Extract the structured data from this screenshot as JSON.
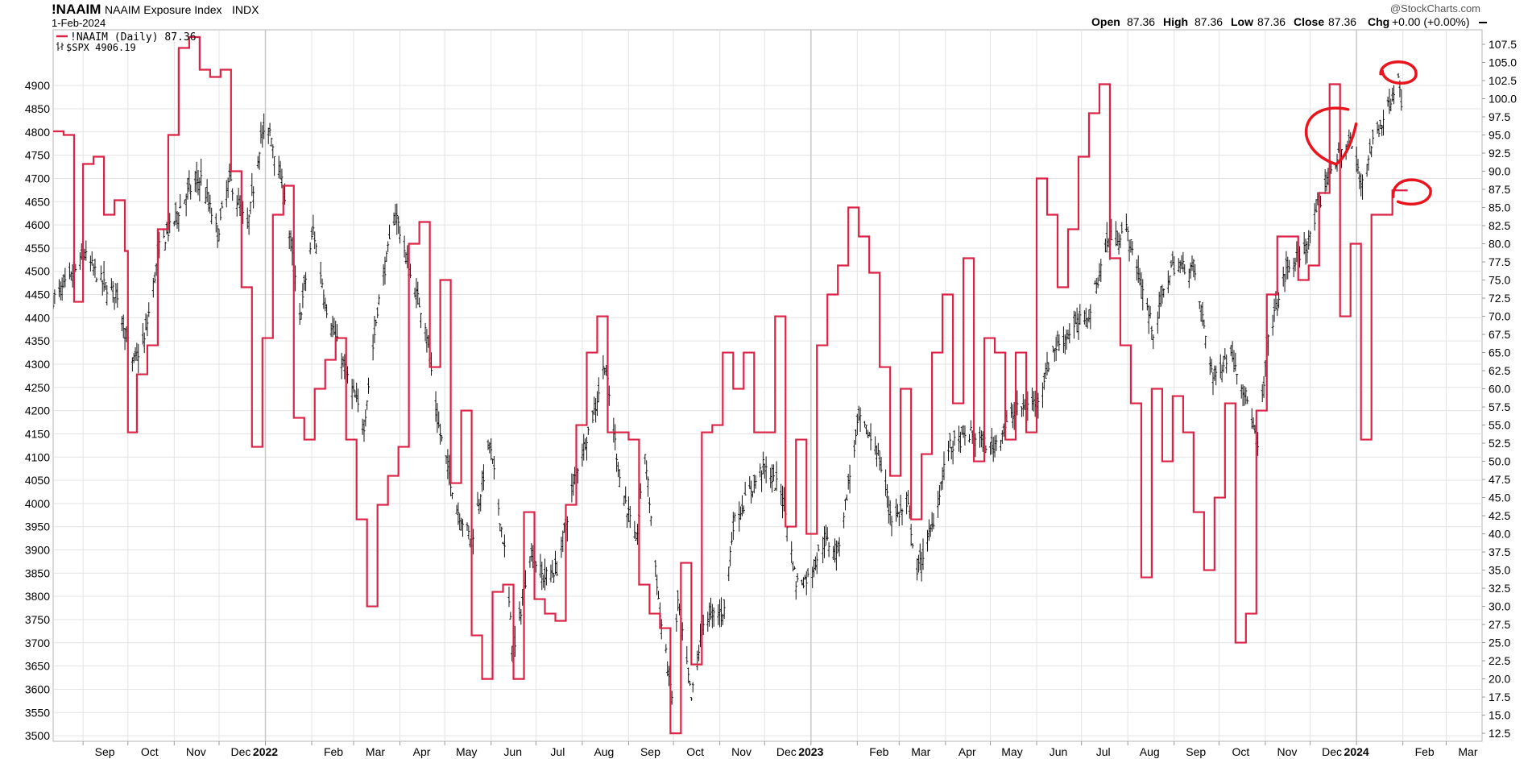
{
  "header": {
    "symbol": "!NAAIM",
    "name": "NAAIM Exposure Index",
    "exchange": "INDX",
    "date": "1-Feb-2024",
    "watermark": "@StockCharts.com",
    "ohlc": {
      "open_label": "Open",
      "open": "87.36",
      "high_label": "High",
      "high": "87.36",
      "low_label": "Low",
      "low": "87.36",
      "close_label": "Close",
      "close": "87.36",
      "chg_label": "Chg",
      "chg": "+0.00 (+0.00%)"
    }
  },
  "legend": {
    "naaim": "!NAAIM (Daily) 87.36",
    "spx": "$SPX 4906.19"
  },
  "colors": {
    "naaim": "#dc2346",
    "spx": "#111111",
    "grid": "#e3e3e3",
    "annotation": "#e8141e"
  },
  "chart_data": {
    "type": "line",
    "x_axis": {
      "range": [
        "2021-08-12",
        "2024-03-25"
      ],
      "tick_labels": [
        {
          "label": "Sep",
          "date": "2021-09-01"
        },
        {
          "label": "Oct",
          "date": "2021-10-01"
        },
        {
          "label": "Nov",
          "date": "2021-11-01"
        },
        {
          "label": "Dec",
          "date": "2021-12-01"
        },
        {
          "label": "2022",
          "date": "2022-01-01",
          "bold": true
        },
        {
          "label": "Feb",
          "date": "2022-02-01"
        },
        {
          "label": "Mar",
          "date": "2022-03-01"
        },
        {
          "label": "Apr",
          "date": "2022-04-01"
        },
        {
          "label": "May",
          "date": "2022-05-01"
        },
        {
          "label": "Jun",
          "date": "2022-06-01"
        },
        {
          "label": "Jul",
          "date": "2022-07-01"
        },
        {
          "label": "Aug",
          "date": "2022-08-01"
        },
        {
          "label": "Sep",
          "date": "2022-09-01"
        },
        {
          "label": "Oct",
          "date": "2022-10-01"
        },
        {
          "label": "Nov",
          "date": "2022-11-01"
        },
        {
          "label": "Dec",
          "date": "2022-12-01"
        },
        {
          "label": "2023",
          "date": "2023-01-01",
          "bold": true
        },
        {
          "label": "Feb",
          "date": "2023-02-01"
        },
        {
          "label": "Mar",
          "date": "2023-03-01"
        },
        {
          "label": "Apr",
          "date": "2023-04-01"
        },
        {
          "label": "May",
          "date": "2023-05-01"
        },
        {
          "label": "Jun",
          "date": "2023-06-01"
        },
        {
          "label": "Jul",
          "date": "2023-07-01"
        },
        {
          "label": "Aug",
          "date": "2023-08-01"
        },
        {
          "label": "Sep",
          "date": "2023-09-01"
        },
        {
          "label": "Oct",
          "date": "2023-10-01"
        },
        {
          "label": "Nov",
          "date": "2023-11-01"
        },
        {
          "label": "Dec",
          "date": "2023-12-01"
        },
        {
          "label": "2024",
          "date": "2024-01-01",
          "bold": true
        },
        {
          "label": "Feb",
          "date": "2024-02-01"
        },
        {
          "label": "Mar",
          "date": "2024-03-01"
        }
      ]
    },
    "left_axis": {
      "ylim": [
        3488,
        5020
      ],
      "ticks": [
        3500,
        3550,
        3600,
        3650,
        3700,
        3750,
        3800,
        3850,
        3900,
        3950,
        4000,
        4050,
        4100,
        4150,
        4200,
        4250,
        4300,
        4350,
        4400,
        4450,
        4500,
        4550,
        4600,
        4650,
        4700,
        4750,
        4800,
        4850,
        4900
      ]
    },
    "right_axis": {
      "ylim": [
        11.4,
        109.5
      ],
      "ticks": [
        "12.5",
        "15.0",
        "17.5",
        "20.0",
        "22.5",
        "25.0",
        "27.5",
        "30.0",
        "32.5",
        "35.0",
        "37.5",
        "40.0",
        "42.5",
        "45.0",
        "47.5",
        "50.0",
        "52.5",
        "55.0",
        "57.5",
        "60.0",
        "62.5",
        "65.0",
        "67.5",
        "70.0",
        "72.5",
        "75.0",
        "77.5",
        "80.0",
        "82.5",
        "85.0",
        "87.5",
        "90.0",
        "92.5",
        "95.0",
        "97.5",
        "100.0",
        "102.5",
        "105.0",
        "107.5"
      ]
    },
    "series": [
      {
        "name": "!NAAIM (Daily)",
        "axis": "right",
        "style": "step",
        "points": [
          [
            "2021-08-12",
            95.5
          ],
          [
            "2021-08-19",
            95.0
          ],
          [
            "2021-08-26",
            72
          ],
          [
            "2021-09-01",
            91
          ],
          [
            "2021-09-08",
            92
          ],
          [
            "2021-09-15",
            84
          ],
          [
            "2021-09-22",
            86
          ],
          [
            "2021-09-29",
            79
          ],
          [
            "2021-10-01",
            54
          ],
          [
            "2021-10-07",
            62
          ],
          [
            "2021-10-14",
            66
          ],
          [
            "2021-10-21",
            82
          ],
          [
            "2021-10-28",
            95
          ],
          [
            "2021-11-04",
            107
          ],
          [
            "2021-11-11",
            108.5
          ],
          [
            "2021-11-18",
            104
          ],
          [
            "2021-11-25",
            103
          ],
          [
            "2021-12-02",
            104
          ],
          [
            "2021-12-09",
            90
          ],
          [
            "2021-12-16",
            74
          ],
          [
            "2021-12-23",
            52
          ],
          [
            "2021-12-30",
            67
          ],
          [
            "2022-01-06",
            84
          ],
          [
            "2022-01-13",
            88
          ],
          [
            "2022-01-20",
            56
          ],
          [
            "2022-01-27",
            53
          ],
          [
            "2022-02-03",
            60
          ],
          [
            "2022-02-10",
            64
          ],
          [
            "2022-02-17",
            67
          ],
          [
            "2022-02-24",
            53
          ],
          [
            "2022-03-03",
            42
          ],
          [
            "2022-03-10",
            30
          ],
          [
            "2022-03-17",
            44
          ],
          [
            "2022-03-24",
            48
          ],
          [
            "2022-03-31",
            52
          ],
          [
            "2022-04-07",
            80
          ],
          [
            "2022-04-14",
            83
          ],
          [
            "2022-04-21",
            63
          ],
          [
            "2022-04-28",
            75
          ],
          [
            "2022-05-05",
            47
          ],
          [
            "2022-05-12",
            57
          ],
          [
            "2022-05-19",
            26
          ],
          [
            "2022-05-26",
            20
          ],
          [
            "2022-06-02",
            32
          ],
          [
            "2022-06-09",
            33
          ],
          [
            "2022-06-16",
            20
          ],
          [
            "2022-06-23",
            43
          ],
          [
            "2022-06-30",
            31
          ],
          [
            "2022-07-07",
            29
          ],
          [
            "2022-07-14",
            28
          ],
          [
            "2022-07-21",
            44
          ],
          [
            "2022-07-28",
            55
          ],
          [
            "2022-08-04",
            65
          ],
          [
            "2022-08-11",
            70
          ],
          [
            "2022-08-18",
            54
          ],
          [
            "2022-08-25",
            54
          ],
          [
            "2022-09-01",
            53
          ],
          [
            "2022-09-08",
            33
          ],
          [
            "2022-09-15",
            29
          ],
          [
            "2022-09-22",
            27
          ],
          [
            "2022-09-29",
            12.5
          ],
          [
            "2022-10-06",
            36
          ],
          [
            "2022-10-13",
            22
          ],
          [
            "2022-10-20",
            54
          ],
          [
            "2022-10-27",
            55
          ],
          [
            "2022-11-03",
            65
          ],
          [
            "2022-11-10",
            60
          ],
          [
            "2022-11-17",
            65
          ],
          [
            "2022-11-24",
            54
          ],
          [
            "2022-12-01",
            54
          ],
          [
            "2022-12-08",
            70
          ],
          [
            "2022-12-15",
            41
          ],
          [
            "2022-12-22",
            53
          ],
          [
            "2022-12-29",
            40
          ],
          [
            "2023-01-05",
            66
          ],
          [
            "2023-01-12",
            73
          ],
          [
            "2023-01-19",
            77
          ],
          [
            "2023-01-26",
            85
          ],
          [
            "2023-02-02",
            81
          ],
          [
            "2023-02-09",
            76
          ],
          [
            "2023-02-16",
            63
          ],
          [
            "2023-02-23",
            48
          ],
          [
            "2023-03-02",
            60
          ],
          [
            "2023-03-09",
            42
          ],
          [
            "2023-03-16",
            51
          ],
          [
            "2023-03-23",
            65
          ],
          [
            "2023-03-30",
            73
          ],
          [
            "2023-04-06",
            58
          ],
          [
            "2023-04-13",
            78
          ],
          [
            "2023-04-20",
            50
          ],
          [
            "2023-04-27",
            67
          ],
          [
            "2023-05-04",
            65
          ],
          [
            "2023-05-11",
            53
          ],
          [
            "2023-05-18",
            65
          ],
          [
            "2023-05-25",
            54
          ],
          [
            "2023-06-01",
            89
          ],
          [
            "2023-06-08",
            84
          ],
          [
            "2023-06-15",
            74
          ],
          [
            "2023-06-22",
            82
          ],
          [
            "2023-06-29",
            92
          ],
          [
            "2023-07-06",
            98
          ],
          [
            "2023-07-13",
            102
          ],
          [
            "2023-07-20",
            78
          ],
          [
            "2023-07-27",
            66
          ],
          [
            "2023-08-03",
            58
          ],
          [
            "2023-08-10",
            34
          ],
          [
            "2023-08-17",
            60
          ],
          [
            "2023-08-24",
            50
          ],
          [
            "2023-08-31",
            59
          ],
          [
            "2023-09-07",
            54
          ],
          [
            "2023-09-14",
            43
          ],
          [
            "2023-09-21",
            35
          ],
          [
            "2023-09-28",
            45
          ],
          [
            "2023-10-05",
            58
          ],
          [
            "2023-10-12",
            25
          ],
          [
            "2023-10-19",
            29
          ],
          [
            "2023-10-26",
            57
          ],
          [
            "2023-11-02",
            73
          ],
          [
            "2023-11-09",
            81
          ],
          [
            "2023-11-16",
            81
          ],
          [
            "2023-11-23",
            75
          ],
          [
            "2023-11-30",
            77
          ],
          [
            "2023-12-07",
            87
          ],
          [
            "2023-12-14",
            102
          ],
          [
            "2023-12-21",
            70
          ],
          [
            "2023-12-28",
            80
          ],
          [
            "2024-01-04",
            53
          ],
          [
            "2024-01-11",
            84
          ],
          [
            "2024-01-18",
            84
          ],
          [
            "2024-01-25",
            87.36
          ],
          [
            "2024-02-01",
            87.36
          ]
        ]
      },
      {
        "name": "$SPX",
        "axis": "left",
        "style": "ohlc",
        "points": [
          [
            "2021-08-12",
            4440
          ],
          [
            "2021-08-23",
            4480
          ],
          [
            "2021-09-02",
            4535
          ],
          [
            "2021-09-15",
            4470
          ],
          [
            "2021-09-24",
            4450
          ],
          [
            "2021-10-04",
            4300
          ],
          [
            "2021-10-12",
            4350
          ],
          [
            "2021-10-22",
            4550
          ],
          [
            "2021-11-01",
            4610
          ],
          [
            "2021-11-10",
            4670
          ],
          [
            "2021-11-19",
            4700
          ],
          [
            "2021-11-30",
            4580
          ],
          [
            "2021-12-08",
            4700
          ],
          [
            "2021-12-20",
            4590
          ],
          [
            "2021-12-29",
            4790
          ],
          [
            "2022-01-04",
            4800
          ],
          [
            "2022-01-14",
            4660
          ],
          [
            "2022-01-24",
            4400
          ],
          [
            "2022-02-02",
            4590
          ],
          [
            "2022-02-11",
            4420
          ],
          [
            "2022-02-24",
            4280
          ],
          [
            "2022-03-08",
            4170
          ],
          [
            "2022-03-17",
            4420
          ],
          [
            "2022-03-29",
            4630
          ],
          [
            "2022-04-08",
            4490
          ],
          [
            "2022-04-18",
            4390
          ],
          [
            "2022-04-26",
            4180
          ],
          [
            "2022-05-09",
            3990
          ],
          [
            "2022-05-19",
            3920
          ],
          [
            "2022-05-31",
            4130
          ],
          [
            "2022-06-10",
            3900
          ],
          [
            "2022-06-16",
            3666
          ],
          [
            "2022-06-27",
            3900
          ],
          [
            "2022-07-06",
            3840
          ],
          [
            "2022-07-15",
            3860
          ],
          [
            "2022-07-28",
            4070
          ],
          [
            "2022-08-10",
            4210
          ],
          [
            "2022-08-16",
            4305
          ],
          [
            "2022-08-26",
            4057
          ],
          [
            "2022-09-06",
            3910
          ],
          [
            "2022-09-12",
            4110
          ],
          [
            "2022-09-22",
            3760
          ],
          [
            "2022-09-30",
            3585
          ],
          [
            "2022-10-04",
            3790
          ],
          [
            "2022-10-13",
            3577
          ],
          [
            "2022-10-21",
            3750
          ],
          [
            "2022-11-04",
            3770
          ],
          [
            "2022-11-10",
            3956
          ],
          [
            "2022-11-30",
            4080
          ],
          [
            "2022-12-13",
            4020
          ],
          [
            "2022-12-22",
            3830
          ],
          [
            "2022-12-30",
            3840
          ],
          [
            "2023-01-10",
            3920
          ],
          [
            "2023-01-19",
            3900
          ],
          [
            "2023-02-02",
            4180
          ],
          [
            "2023-02-14",
            4120
          ],
          [
            "2023-02-24",
            3970
          ],
          [
            "2023-03-07",
            3990
          ],
          [
            "2023-03-13",
            3850
          ],
          [
            "2023-03-23",
            3950
          ],
          [
            "2023-04-03",
            4120
          ],
          [
            "2023-04-18",
            4150
          ],
          [
            "2023-05-02",
            4120
          ],
          [
            "2023-05-18",
            4200
          ],
          [
            "2023-06-01",
            4220
          ],
          [
            "2023-06-12",
            4330
          ],
          [
            "2023-06-23",
            4370
          ],
          [
            "2023-07-06",
            4410
          ],
          [
            "2023-07-18",
            4560
          ],
          [
            "2023-07-31",
            4590
          ],
          [
            "2023-08-10",
            4470
          ],
          [
            "2023-08-18",
            4370
          ],
          [
            "2023-08-30",
            4510
          ],
          [
            "2023-09-14",
            4510
          ],
          [
            "2023-09-27",
            4270
          ],
          [
            "2023-10-09",
            4330
          ],
          [
            "2023-10-20",
            4220
          ],
          [
            "2023-10-27",
            4117
          ],
          [
            "2023-11-03",
            4360
          ],
          [
            "2023-11-15",
            4500
          ],
          [
            "2023-11-30",
            4560
          ],
          [
            "2023-12-14",
            4720
          ],
          [
            "2023-12-28",
            4780
          ],
          [
            "2024-01-04",
            4690
          ],
          [
            "2024-01-12",
            4780
          ],
          [
            "2024-01-24",
            4870
          ],
          [
            "2024-01-29",
            4930
          ],
          [
            "2024-01-31",
            4845
          ],
          [
            "2024-02-01",
            4906
          ]
        ]
      }
    ],
    "annotations": [
      {
        "type": "hand-drawn-circle",
        "near": [
          "2024-01-29",
          4925
        ],
        "axis": "left"
      },
      {
        "type": "hand-drawn-circle",
        "near": [
          "2023-12-22",
          4800
        ],
        "axis": "left"
      },
      {
        "type": "hand-drawn-circle",
        "near": [
          "2024-02-01",
          87.36
        ],
        "axis": "right"
      }
    ]
  }
}
